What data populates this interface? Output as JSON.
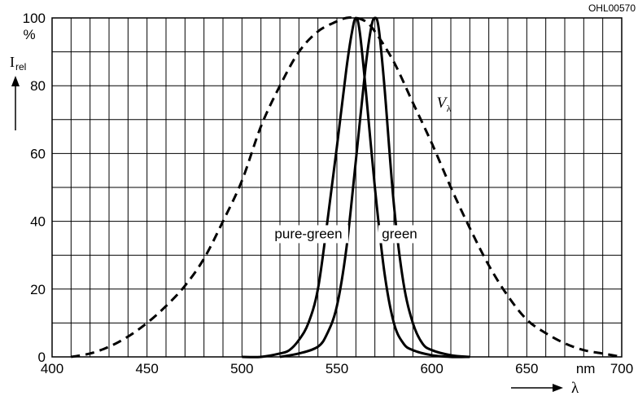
{
  "chart_data": {
    "type": "line",
    "doc_code": "OHL00570",
    "ylabel": "I",
    "ylabel_sub": "rel",
    "ylabel_unit": "%",
    "xlabel": "λ",
    "xlabel_unit": "nm",
    "xlim": [
      400,
      700
    ],
    "ylim": [
      0,
      100
    ],
    "x_ticks": [
      400,
      450,
      500,
      550,
      600,
      650,
      700
    ],
    "y_ticks": [
      0,
      20,
      40,
      60,
      80,
      100
    ],
    "grid": true,
    "series": [
      {
        "name": "V",
        "name_sub": "λ",
        "style": "dashed",
        "color": "#000000",
        "x": [
          410,
          420,
          430,
          440,
          450,
          460,
          470,
          480,
          490,
          500,
          510,
          520,
          530,
          540,
          550,
          555,
          560,
          565,
          570,
          580,
          590,
          600,
          610,
          620,
          630,
          640,
          650,
          660,
          670,
          680,
          690,
          700
        ],
        "y": [
          0,
          1,
          3,
          6,
          10,
          15,
          21,
          29,
          40,
          52,
          68,
          80,
          90,
          96,
          99,
          100,
          100,
          99,
          96,
          87,
          75,
          63,
          50,
          38,
          27,
          18,
          11,
          7,
          4,
          2,
          1,
          0
        ]
      },
      {
        "name": "pure-green",
        "style": "solid",
        "color": "#000000",
        "x": [
          500,
          510,
          520,
          525,
          530,
          535,
          540,
          545,
          550,
          555,
          558,
          560,
          562,
          565,
          570,
          575,
          580,
          585,
          590,
          600,
          610,
          620
        ],
        "y": [
          0,
          0,
          1,
          2,
          5,
          10,
          20,
          40,
          62,
          85,
          96,
          100,
          96,
          80,
          50,
          25,
          10,
          4,
          2,
          0.5,
          0,
          0
        ]
      },
      {
        "name": "green",
        "style": "solid",
        "color": "#000000",
        "x": [
          520,
          530,
          540,
          545,
          550,
          555,
          560,
          565,
          568,
          570,
          572,
          575,
          580,
          585,
          590,
          595,
          600,
          610,
          620
        ],
        "y": [
          0,
          1,
          3,
          7,
          15,
          32,
          58,
          85,
          97,
          100,
          97,
          80,
          45,
          22,
          10,
          4,
          2,
          0.5,
          0
        ]
      }
    ],
    "annotations": [
      {
        "text": "pure-green",
        "x": 535,
        "y": 35
      },
      {
        "text": "green",
        "x": 583,
        "y": 35
      },
      {
        "text": "V",
        "sub": "λ",
        "x": 600,
        "y": 75
      }
    ]
  }
}
